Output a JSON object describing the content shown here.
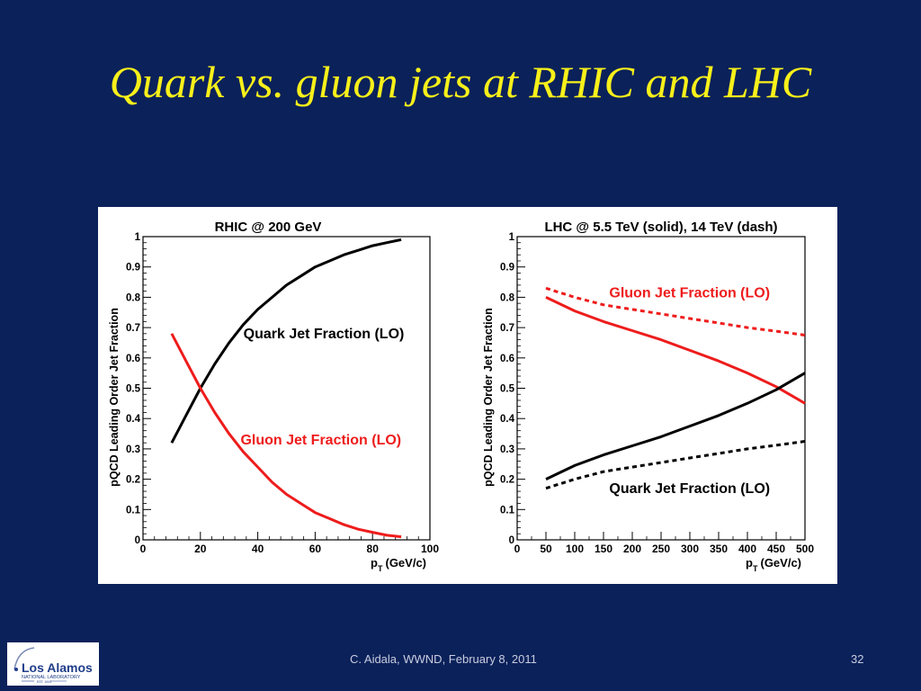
{
  "slide": {
    "title": "Quark vs. gluon jets at RHIC and LHC",
    "footer": "C. Aidala, WWND, February 8, 2011",
    "page_number": "32"
  },
  "logo": {
    "line1": "Los Alamos",
    "line2": "NATIONAL LABORATORY",
    "line3": "EST. 1943"
  },
  "colors": {
    "background": "#0b215a",
    "title": "#f8f01a",
    "quark": "#000000",
    "gluon": "#ee1c1c"
  },
  "chart_data": [
    {
      "type": "line",
      "title": "RHIC @ 200 GeV",
      "xlabel": "p_T (GeV/c)",
      "xlabel_main": "p",
      "xlabel_sub": "T",
      "xlabel_unit": "(GeV/c)",
      "ylabel": "pQCD Leading Order Jet Fraction",
      "xlim": [
        0,
        100
      ],
      "ylim": [
        0,
        1
      ],
      "xticks": [
        0,
        20,
        40,
        60,
        80,
        100
      ],
      "yticks": [
        0,
        0.1,
        0.2,
        0.3,
        0.4,
        0.5,
        0.6,
        0.7,
        0.8,
        0.9,
        1
      ],
      "ytick_labels": [
        "0",
        "0.1",
        "0.2",
        "0.3",
        "0.4",
        "0.5",
        "0.6",
        "0.7",
        "0.8",
        "0.9",
        "1"
      ],
      "grid": false,
      "series": [
        {
          "name": "Quark Jet Fraction (LO)",
          "color": "#000000",
          "style": "solid",
          "x": [
            10,
            15,
            20,
            25,
            30,
            35,
            40,
            45,
            50,
            55,
            60,
            65,
            70,
            75,
            80,
            85,
            90
          ],
          "y": [
            0.32,
            0.41,
            0.5,
            0.58,
            0.65,
            0.71,
            0.76,
            0.8,
            0.84,
            0.87,
            0.9,
            0.92,
            0.94,
            0.955,
            0.97,
            0.98,
            0.99
          ]
        },
        {
          "name": "Gluon Jet Fraction (LO)",
          "color": "#ee1c1c",
          "style": "solid",
          "x": [
            10,
            15,
            20,
            25,
            30,
            35,
            40,
            45,
            50,
            55,
            60,
            65,
            70,
            75,
            80,
            85,
            90
          ],
          "y": [
            0.68,
            0.59,
            0.5,
            0.42,
            0.35,
            0.29,
            0.24,
            0.19,
            0.15,
            0.12,
            0.09,
            0.07,
            0.05,
            0.035,
            0.025,
            0.015,
            0.01
          ]
        }
      ],
      "annotations": [
        {
          "text": "Quark Jet Fraction (LO)",
          "color": "#000000",
          "x": 35,
          "y": 0.665
        },
        {
          "text": "Gluon Jet Fraction (LO)",
          "color": "#ee1c1c",
          "x": 34,
          "y": 0.315
        }
      ]
    },
    {
      "type": "line",
      "title": "LHC @ 5.5 TeV (solid), 14 TeV (dash)",
      "xlabel": "p_T (GeV/c)",
      "xlabel_main": "p",
      "xlabel_sub": "T",
      "xlabel_unit": "(GeV/c)",
      "ylabel": "pQCD Leading Order Jet Fraction",
      "xlim": [
        0,
        500
      ],
      "ylim": [
        0,
        1
      ],
      "xticks": [
        0,
        50,
        100,
        150,
        200,
        250,
        300,
        350,
        400,
        450,
        500
      ],
      "yticks": [
        0,
        0.1,
        0.2,
        0.3,
        0.4,
        0.5,
        0.6,
        0.7,
        0.8,
        0.9,
        1
      ],
      "ytick_labels": [
        "0",
        "0.1",
        "0.2",
        "0.3",
        "0.4",
        "0.5",
        "0.6",
        "0.7",
        "0.8",
        "0.9",
        "1"
      ],
      "grid": false,
      "series": [
        {
          "name": "Gluon Jet Fraction (LO), 14 TeV",
          "color": "#ee1c1c",
          "style": "dash",
          "x": [
            50,
            100,
            150,
            200,
            250,
            300,
            350,
            400,
            450,
            500
          ],
          "y": [
            0.83,
            0.8,
            0.775,
            0.76,
            0.745,
            0.73,
            0.715,
            0.7,
            0.688,
            0.675
          ]
        },
        {
          "name": "Gluon Jet Fraction (LO), 5.5 TeV",
          "color": "#ee1c1c",
          "style": "solid",
          "x": [
            50,
            100,
            150,
            200,
            250,
            300,
            350,
            400,
            450,
            500
          ],
          "y": [
            0.8,
            0.755,
            0.72,
            0.69,
            0.66,
            0.625,
            0.59,
            0.55,
            0.505,
            0.45
          ]
        },
        {
          "name": "Quark Jet Fraction (LO), 5.5 TeV",
          "color": "#000000",
          "style": "solid",
          "x": [
            50,
            100,
            150,
            200,
            250,
            300,
            350,
            400,
            450,
            500
          ],
          "y": [
            0.2,
            0.245,
            0.28,
            0.31,
            0.34,
            0.375,
            0.41,
            0.45,
            0.495,
            0.55
          ]
        },
        {
          "name": "Quark Jet Fraction (LO), 14 TeV",
          "color": "#000000",
          "style": "dash",
          "x": [
            50,
            100,
            150,
            200,
            250,
            300,
            350,
            400,
            450,
            500
          ],
          "y": [
            0.17,
            0.2,
            0.225,
            0.24,
            0.255,
            0.27,
            0.285,
            0.3,
            0.312,
            0.325
          ]
        }
      ],
      "annotations": [
        {
          "text": "Gluon Jet Fraction (LO)",
          "color": "#ee1c1c",
          "x": 160,
          "y": 0.8
        },
        {
          "text": "Quark Jet Fraction (LO)",
          "color": "#000000",
          "x": 160,
          "y": 0.155
        }
      ]
    }
  ]
}
